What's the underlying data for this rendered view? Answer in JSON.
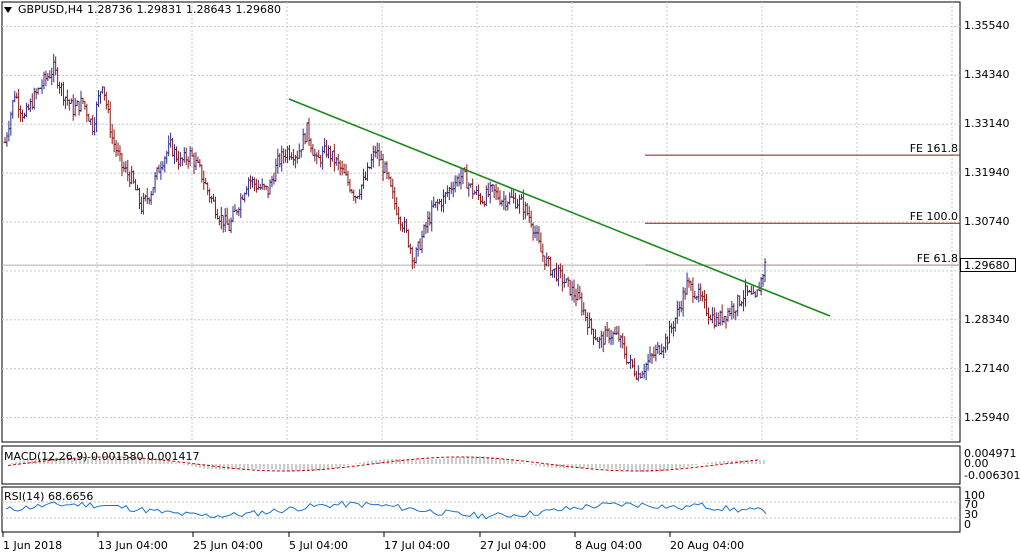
{
  "header": {
    "symbol": "GBPUSD,H4",
    "open": "1.28736",
    "high": "1.29831",
    "low": "1.28643",
    "close": "1.29680"
  },
  "macd": {
    "label": "MACD(12,26,9) 0.001580 0.001417",
    "scale": [
      "0.004971",
      "0.00",
      "-0.006301"
    ]
  },
  "rsi": {
    "label": "RSI(14) 68.6656",
    "scale": [
      "100",
      "70",
      "30",
      "0"
    ]
  },
  "price_axis": [
    "1.35540",
    "1.34340",
    "1.33140",
    "1.31940",
    "1.30740",
    "1.29680",
    "1.28340",
    "1.27140",
    "1.25940"
  ],
  "current_price": "1.29680",
  "fe_levels": [
    "FE 161.8",
    "FE 100.0",
    "FE 61.8"
  ],
  "time_axis": [
    "1 Jun 2018",
    "13 Jun 04:00",
    "25 Jun 04:00",
    "5 Jul 04:00",
    "17 Jul 04:00",
    "27 Jul 04:00",
    "8 Aug 04:00",
    "20 Aug 04:00"
  ],
  "colors": {
    "bull": "#2c2c8f",
    "bear": "#8b1a1a",
    "trendline": "#1a8a1a",
    "fe_line": "#8b1a1a",
    "rsi": "#1e73c8",
    "macd_signal": "#cc0000",
    "grid": "#c8c8c8"
  },
  "chart_data": {
    "type": "candlestick",
    "title": "GBPUSD,H4",
    "ylim": [
      1.2534,
      1.3614
    ],
    "x_ticks": [
      "1 Jun 2018",
      "13 Jun 04:00",
      "25 Jun 04:00",
      "5 Jul 04:00",
      "17 Jul 04:00",
      "27 Jul 04:00",
      "8 Aug 04:00",
      "20 Aug 04:00"
    ],
    "close_path": [
      [
        0,
        1.327
      ],
      [
        5,
        1.339
      ],
      [
        10,
        1.333
      ],
      [
        15,
        1.338
      ],
      [
        20,
        1.342
      ],
      [
        25,
        1.345
      ],
      [
        30,
        1.339
      ],
      [
        35,
        1.335
      ],
      [
        40,
        1.337
      ],
      [
        45,
        1.331
      ],
      [
        50,
        1.342
      ],
      [
        55,
        1.328
      ],
      [
        60,
        1.321
      ],
      [
        65,
        1.318
      ],
      [
        70,
        1.311
      ],
      [
        75,
        1.315
      ],
      [
        80,
        1.322
      ],
      [
        85,
        1.326
      ],
      [
        90,
        1.322
      ],
      [
        95,
        1.324
      ],
      [
        100,
        1.32
      ],
      [
        105,
        1.314
      ],
      [
        110,
        1.309
      ],
      [
        115,
        1.306
      ],
      [
        120,
        1.312
      ],
      [
        125,
        1.318
      ],
      [
        130,
        1.316
      ],
      [
        135,
        1.315
      ],
      [
        140,
        1.322
      ],
      [
        145,
        1.325
      ],
      [
        150,
        1.324
      ],
      [
        155,
        1.33
      ],
      [
        160,
        1.322
      ],
      [
        165,
        1.325
      ],
      [
        170,
        1.322
      ],
      [
        175,
        1.318
      ],
      [
        180,
        1.314
      ],
      [
        185,
        1.318
      ],
      [
        190,
        1.325
      ],
      [
        195,
        1.32
      ],
      [
        200,
        1.312
      ],
      [
        205,
        1.306
      ],
      [
        210,
        1.298
      ],
      [
        215,
        1.305
      ],
      [
        220,
        1.311
      ],
      [
        225,
        1.313
      ],
      [
        230,
        1.317
      ],
      [
        235,
        1.319
      ],
      [
        240,
        1.315
      ],
      [
        245,
        1.313
      ],
      [
        250,
        1.315
      ],
      [
        255,
        1.313
      ],
      [
        260,
        1.313
      ],
      [
        265,
        1.312
      ],
      [
        270,
        1.308
      ],
      [
        275,
        1.3
      ],
      [
        280,
        1.296
      ],
      [
        285,
        1.294
      ],
      [
        290,
        1.291
      ],
      [
        295,
        1.288
      ],
      [
        300,
        1.282
      ],
      [
        305,
        1.278
      ],
      [
        310,
        1.28
      ],
      [
        315,
        1.279
      ],
      [
        320,
        1.273
      ],
      [
        325,
        1.27
      ],
      [
        330,
        1.273
      ],
      [
        335,
        1.276
      ],
      [
        340,
        1.279
      ],
      [
        345,
        1.285
      ],
      [
        350,
        1.292
      ],
      [
        355,
        1.29
      ],
      [
        360,
        1.286
      ],
      [
        365,
        1.283
      ],
      [
        370,
        1.285
      ],
      [
        375,
        1.287
      ],
      [
        380,
        1.29
      ],
      [
        385,
        1.288
      ],
      [
        390,
        1.2968
      ]
    ],
    "trendline": [
      [
        0.0,
        1.339
      ],
      [
        1.0,
        1.285
      ]
    ],
    "fe_levels": [
      {
        "label": "FE 161.8",
        "value": 1.3238
      },
      {
        "label": "FE 100.0",
        "value": 1.3071
      },
      {
        "label": "FE 61.8",
        "value": 1.2968
      }
    ],
    "macd": {
      "macd": 0.00158,
      "signal": 0.001417,
      "range": [
        -0.006301,
        0.004971
      ]
    },
    "rsi": {
      "value": 68.6656,
      "levels": [
        30,
        70
      ],
      "range": [
        0,
        100
      ]
    }
  }
}
